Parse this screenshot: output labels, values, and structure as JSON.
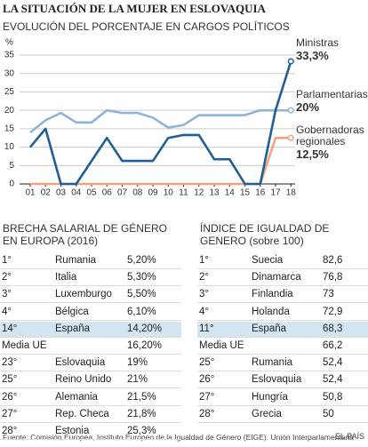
{
  "title": "LA SITUACIÓN DE LA MUJER EN ESLOVAQUIA",
  "chart_data": {
    "type": "line",
    "title": "EVOLUCIÓN DEL PORCENTAJE EN CARGOS POLÍTICOS",
    "y_label": "%",
    "categories": [
      "01",
      "02",
      "03",
      "04",
      "05",
      "06",
      "07",
      "08",
      "09",
      "10",
      "11",
      "12",
      "13",
      "14",
      "15",
      "16",
      "17",
      "18"
    ],
    "ylim": [
      0,
      35
    ],
    "yticks": [
      0,
      5,
      10,
      15,
      20,
      25,
      30,
      35
    ],
    "grid": true,
    "series": [
      {
        "name": "Ministras",
        "color": "#1f5f94",
        "values": [
          10,
          15,
          0,
          0,
          6.25,
          12.5,
          6.25,
          6.25,
          6.25,
          12.5,
          13.3,
          13.3,
          6.7,
          6.7,
          0,
          0,
          20,
          33.3
        ],
        "value_labels": [
          null,
          null,
          null,
          null,
          null,
          null,
          null,
          null,
          null,
          null,
          null,
          null,
          null,
          null,
          null,
          null,
          null,
          "33,3%"
        ]
      },
      {
        "name": "Parlamentarias",
        "color": "#8eb4d6",
        "values": [
          14,
          17.3,
          19.3,
          16.7,
          16.7,
          20,
          19.3,
          19.3,
          18,
          15.3,
          16,
          18.7,
          18.7,
          18.7,
          18.7,
          20,
          20,
          20
        ],
        "value_labels": [
          null,
          null,
          null,
          null,
          null,
          null,
          null,
          null,
          null,
          null,
          null,
          null,
          null,
          null,
          null,
          null,
          null,
          "20%"
        ]
      },
      {
        "name": "Gobernadoras regionales",
        "color": "#f0a17e",
        "values": [
          0,
          0,
          0,
          0,
          0,
          0,
          0,
          0,
          0,
          0,
          0,
          0,
          0,
          0,
          0,
          0,
          12.5,
          12.5
        ],
        "value_labels": [
          null,
          null,
          null,
          null,
          null,
          null,
          null,
          null,
          null,
          null,
          null,
          null,
          null,
          null,
          null,
          null,
          null,
          "12,5%"
        ]
      }
    ]
  },
  "tables": [
    {
      "title": "BRECHA SALARIAL DE GÉNERO EN EUROPA (2016)",
      "rows": [
        {
          "rank": "1°",
          "country": "Rumania",
          "value": "5,20%"
        },
        {
          "rank": "2°",
          "country": "Italia",
          "value": "5,30%"
        },
        {
          "rank": "3°",
          "country": "Luxemburgo",
          "value": "5,50%"
        },
        {
          "rank": "4°",
          "country": "Bélgica",
          "value": "6,10%"
        },
        {
          "rank": "14°",
          "country": "España",
          "value": "14,20%",
          "highlight": true
        },
        {
          "rank": "Media UE",
          "value": "16,20%"
        },
        {
          "rank": "23°",
          "country": "Eslovaquia",
          "value": "19%"
        },
        {
          "rank": "25°",
          "country": "Reino Unido",
          "value": "21%"
        },
        {
          "rank": "26°",
          "country": "Alemania",
          "value": "21,5%"
        },
        {
          "rank": "27°",
          "country": "Rep. Checa",
          "value": "21,8%"
        },
        {
          "rank": "28°",
          "country": "Estonia",
          "value": "25,3%"
        }
      ]
    },
    {
      "title": "ÍNDICE DE IGUALDAD DE GENERO (sobre 100)",
      "rows": [
        {
          "rank": "1°",
          "country": "Suecia",
          "value": "82,6"
        },
        {
          "rank": "2°",
          "country": "Dinamarca",
          "value": "76,8"
        },
        {
          "rank": "3°",
          "country": "Finlandia",
          "value": "73"
        },
        {
          "rank": "4°",
          "country": "Holanda",
          "value": "72,9"
        },
        {
          "rank": "11°",
          "country": "España",
          "value": "68,3",
          "highlight": true
        },
        {
          "rank": "Media UE",
          "value": "66,2"
        },
        {
          "rank": "25°",
          "country": "Rumania",
          "value": "52,4"
        },
        {
          "rank": "26°",
          "country": "Eslovaquia",
          "value": "52,4"
        },
        {
          "rank": "27°",
          "country": "Hungría",
          "value": "50,8"
        },
        {
          "rank": "28°",
          "country": "Grecia",
          "value": "50"
        }
      ]
    }
  ],
  "footer": {
    "source": "Fuente: Comisión Europea, Instituto Europeo de la Igualdad de Género (EIGE). Unión Interparlamentaria",
    "brand": "EL PAÍS"
  }
}
